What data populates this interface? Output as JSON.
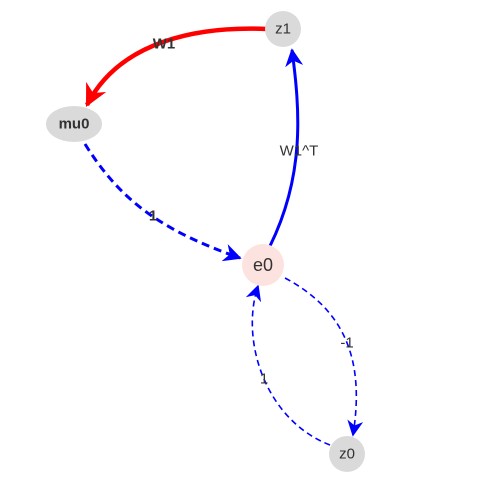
{
  "colors": {
    "node_gray": "#dadada",
    "node_pink": "#fde3df",
    "edge_red": "#ff0000",
    "edge_blue": "#0000ff",
    "label": "#333333"
  },
  "nodes": {
    "z1": {
      "label": "z1"
    },
    "mu0": {
      "label": "mu0"
    },
    "e0": {
      "label": "e0"
    },
    "z0": {
      "label": "z0"
    }
  },
  "edges": {
    "z1_mu0": {
      "label": "W1"
    },
    "e0_z1": {
      "label": "W1^T"
    },
    "mu0_e0": {
      "label": "1"
    },
    "e0_z0": {
      "label": "-1"
    },
    "z0_e0": {
      "label": "1"
    }
  }
}
